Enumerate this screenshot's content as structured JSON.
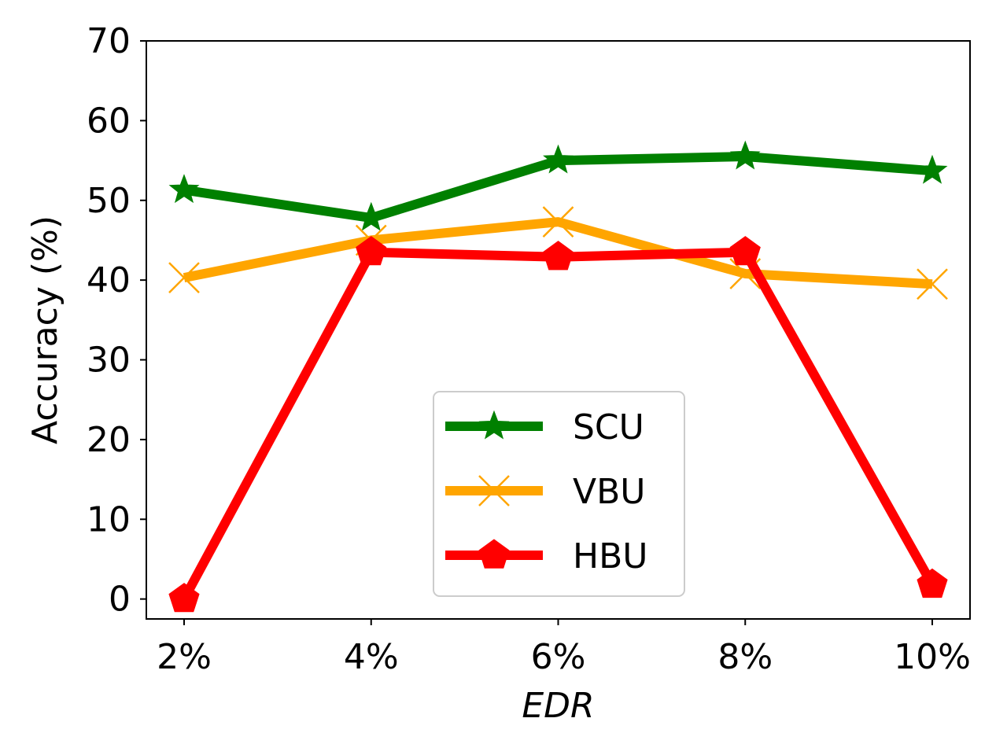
{
  "chart_data": {
    "type": "line",
    "title": "",
    "xlabel": "EDR",
    "ylabel": "Accuracy (%)",
    "categories": [
      "2%",
      "4%",
      "6%",
      "8%",
      "10%"
    ],
    "ylim": [
      -2.5,
      70
    ],
    "yticks": [
      0,
      10,
      20,
      30,
      40,
      50,
      60,
      70
    ],
    "grid": false,
    "legend_position": "lower center",
    "series": [
      {
        "name": "SCU",
        "color": "#008000",
        "marker": "star",
        "values": [
          51.3,
          47.8,
          55.0,
          55.5,
          53.7
        ]
      },
      {
        "name": "VBU",
        "color": "#FFA500",
        "marker": "x",
        "values": [
          40.3,
          45.0,
          47.3,
          40.8,
          39.5
        ]
      },
      {
        "name": "HBU",
        "color": "#FF0000",
        "marker": "pentagon",
        "values": [
          0.0,
          43.5,
          42.9,
          43.5,
          1.8
        ]
      }
    ]
  }
}
